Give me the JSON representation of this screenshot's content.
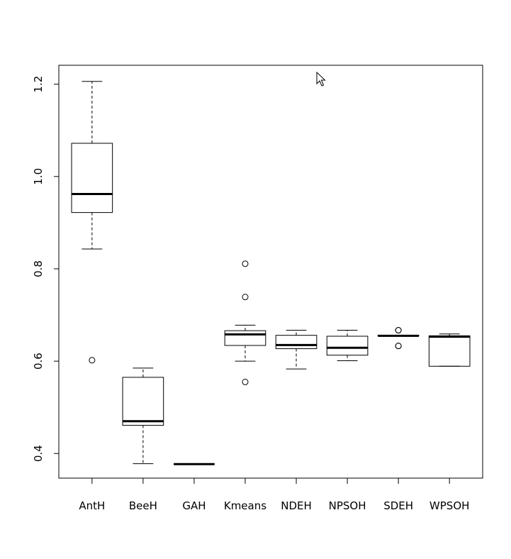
{
  "chart_data": {
    "type": "boxplot",
    "categories": [
      "AntH",
      "BeeH",
      "GAH",
      "Kmeans",
      "NDEH",
      "NPSOH",
      "SDEH",
      "WPSOH"
    ],
    "boxes": [
      {
        "name": "AntH",
        "whisker_low": 0.843,
        "q1": 0.922,
        "median": 0.962,
        "q3": 1.072,
        "whisker_high": 1.206,
        "outliers": [
          0.602
        ]
      },
      {
        "name": "BeeH",
        "whisker_low": 0.378,
        "q1": 0.461,
        "median": 0.47,
        "q3": 0.565,
        "whisker_high": 0.585,
        "outliers": []
      },
      {
        "name": "GAH",
        "whisker_low": 0.377,
        "q1": 0.377,
        "median": 0.377,
        "q3": 0.377,
        "whisker_high": 0.377,
        "outliers": []
      },
      {
        "name": "Kmeans",
        "whisker_low": 0.6,
        "q1": 0.634,
        "median": 0.658,
        "q3": 0.666,
        "whisker_high": 0.678,
        "outliers": [
          0.811,
          0.739,
          0.555
        ]
      },
      {
        "name": "NDEH",
        "whisker_low": 0.583,
        "q1": 0.627,
        "median": 0.635,
        "q3": 0.656,
        "whisker_high": 0.667,
        "outliers": []
      },
      {
        "name": "NPSOH",
        "whisker_low": 0.601,
        "q1": 0.613,
        "median": 0.629,
        "q3": 0.654,
        "whisker_high": 0.667,
        "outliers": []
      },
      {
        "name": "SDEH",
        "whisker_low": 0.655,
        "q1": 0.655,
        "median": 0.655,
        "q3": 0.656,
        "whisker_high": 0.656,
        "outliers": [
          0.667,
          0.667,
          0.633,
          0.633
        ]
      },
      {
        "name": "WPSOH",
        "whisker_low": 0.589,
        "q1": 0.589,
        "median": 0.653,
        "q3": 0.655,
        "whisker_high": 0.659,
        "outliers": []
      }
    ],
    "yticks": [
      0.4,
      0.6,
      0.8,
      1.0,
      1.2
    ],
    "ytick_labels": [
      "0.4",
      "0.6",
      "0.8",
      "1.0",
      "1.2"
    ],
    "ylim": [
      0.3466,
      1.241
    ],
    "grid": false,
    "title": "",
    "xlabel": "",
    "ylabel": ""
  }
}
